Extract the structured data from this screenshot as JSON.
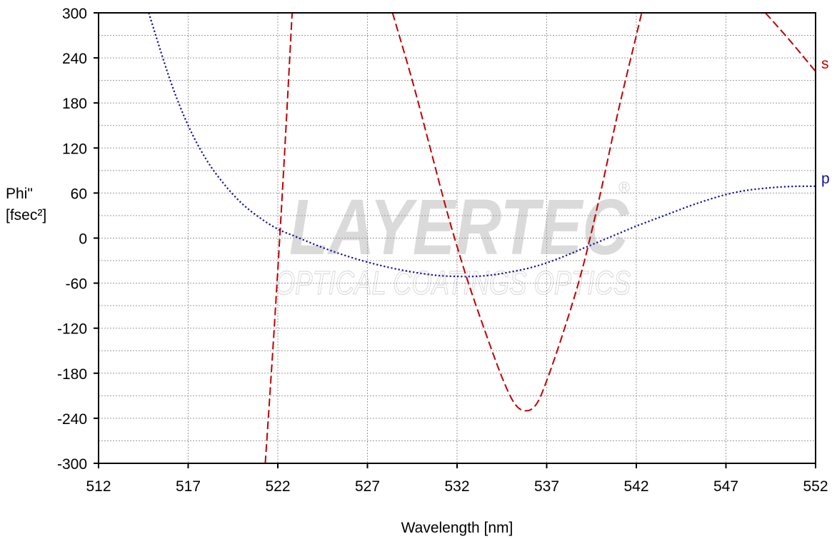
{
  "chart_data": {
    "type": "line",
    "xlabel": "Wavelength [nm]",
    "ylabel_line1": "Phi\"",
    "ylabel_line2": "[fsec²]",
    "xlim": [
      512,
      552
    ],
    "ylim": [
      -300,
      300
    ],
    "x_ticks": [
      512,
      517,
      522,
      527,
      532,
      537,
      542,
      547,
      552
    ],
    "y_ticks": [
      300,
      240,
      180,
      120,
      60,
      0,
      -60,
      -120,
      -180,
      -240,
      -300
    ],
    "grid": true,
    "watermark": {
      "main": "LAYERTEC",
      "sub": "OPTICAL COATINGS OPTICS",
      "mark": "®"
    },
    "series": [
      {
        "name": "s",
        "color": "#c00000",
        "style": "dashed",
        "segments": [
          {
            "x": [
              521.3,
              521.8,
              522.3,
              522.8
            ],
            "y": [
              -300,
              -120,
              80,
              300
            ]
          },
          {
            "x": [
              528.4,
              529.5,
              530.5,
              531.5,
              532.5,
              533.5,
              534.5,
              535.2,
              535.8,
              536.4,
              537.0,
              538.0,
              539.0,
              540.0,
              541.0,
              542.0,
              542.3
            ],
            "y": [
              300,
              210,
              120,
              30,
              -50,
              -120,
              -185,
              -220,
              -230,
              -222,
              -190,
              -120,
              -40,
              60,
              170,
              270,
              300
            ]
          },
          {
            "x": [
              549.2,
              550.5,
              552
            ],
            "y": [
              300,
              265,
              222
            ]
          }
        ]
      },
      {
        "name": "p",
        "color": "#1010a0",
        "style": "dotted",
        "segments": [
          {
            "x": [
              514.8,
              516,
              517,
              518,
              519,
              520,
              521,
              522,
              523,
              524,
              525,
              526,
              527,
              528,
              529,
              530,
              531,
              532,
              533,
              534,
              535,
              536,
              537,
              538,
              539,
              540,
              541,
              542,
              543,
              544,
              545,
              546,
              547,
              548,
              549,
              550,
              551,
              552
            ],
            "y": [
              300,
              210,
              150,
              105,
              72,
              46,
              27,
              12,
              2,
              -8,
              -17,
              -25,
              -32,
              -38,
              -43,
              -47,
              -50,
              -51,
              -51,
              -49,
              -45,
              -40,
              -33,
              -24,
              -14,
              -4,
              6,
              16,
              25,
              34,
              43,
              51,
              58,
              63,
              66,
              68,
              69,
              69
            ]
          }
        ]
      }
    ]
  }
}
